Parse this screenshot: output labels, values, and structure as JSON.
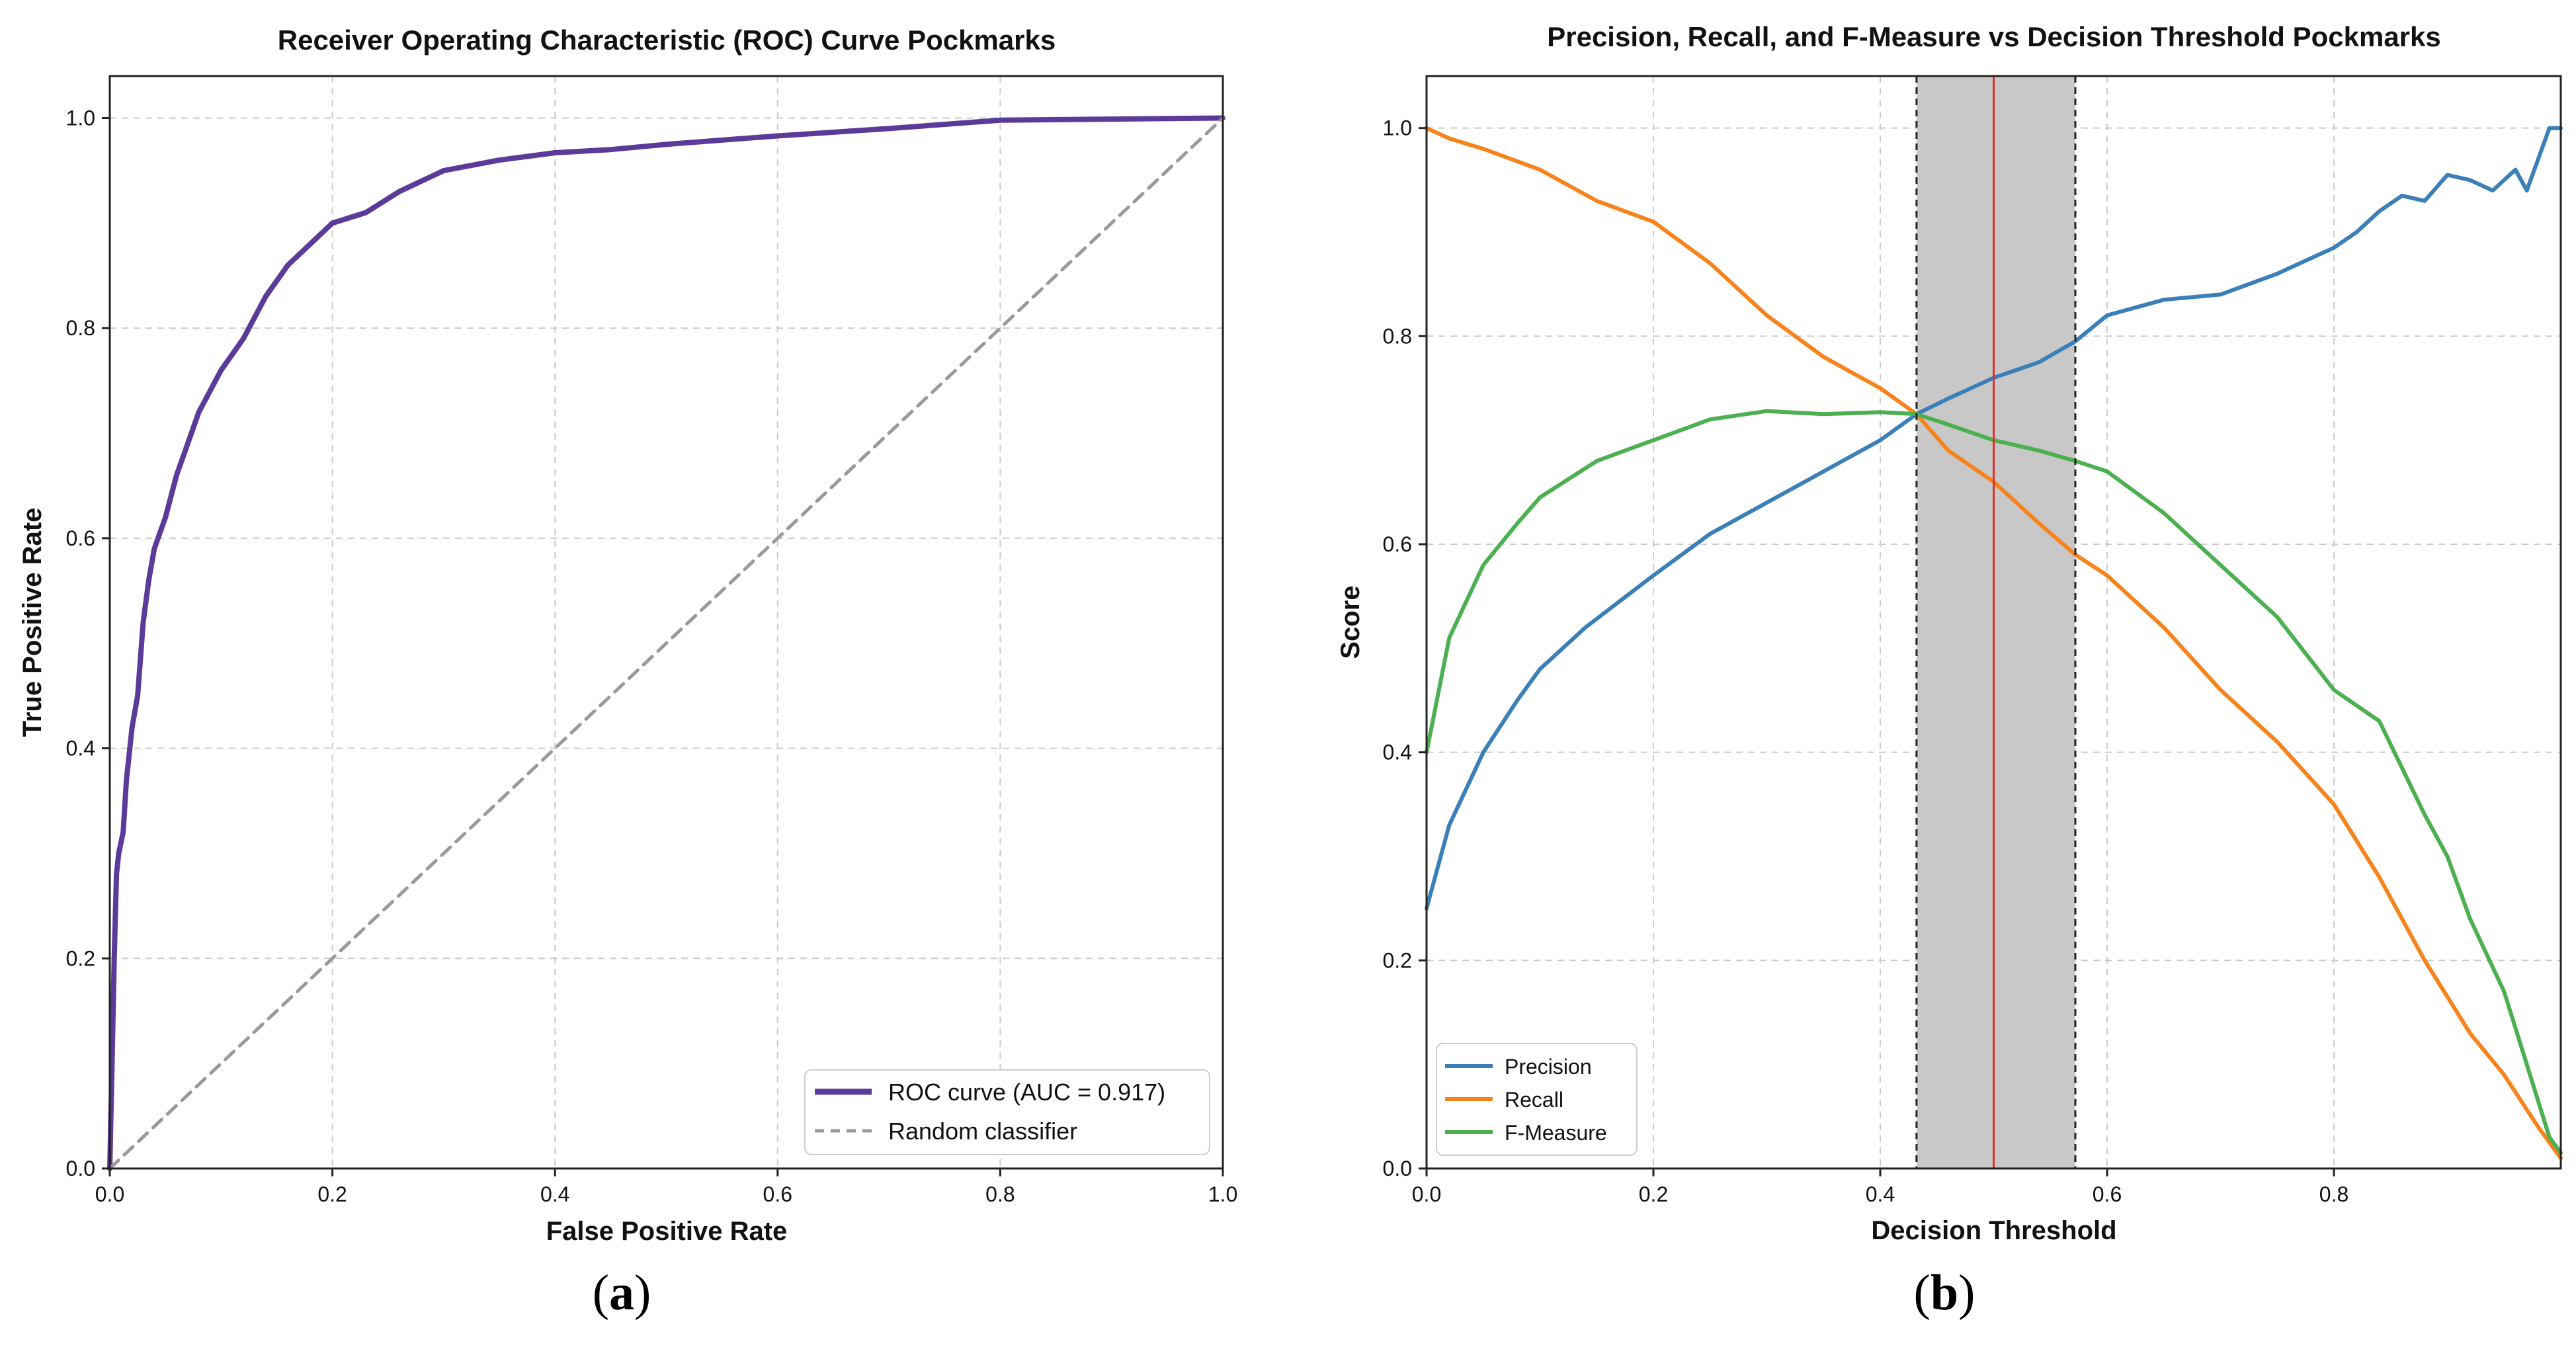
{
  "colors": {
    "roc": "#5b3a9a",
    "random": "#999999",
    "precision": "#3a7fb8",
    "recall": "#f7831c",
    "fmeasure": "#4caf50",
    "threshold_line": "#e82b2b",
    "band": "#c8c8c8"
  },
  "panel_a_caption": "(a)",
  "panel_b_caption": "(b)",
  "panel_a_caption_letter": "a",
  "panel_b_caption_letter": "b",
  "chart_data": [
    {
      "type": "line",
      "title": "Receiver Operating Characteristic (ROC) Curve Pockmarks",
      "xlabel": "False Positive Rate",
      "ylabel": "True Positive Rate",
      "xlim": [
        0,
        1
      ],
      "ylim": [
        0,
        1.04
      ],
      "xticks": [
        0.0,
        0.2,
        0.4,
        0.6,
        0.8,
        1.0
      ],
      "yticks": [
        0.0,
        0.2,
        0.4,
        0.6,
        0.8,
        1.0
      ],
      "xtick_labels": [
        "0.0",
        "0.2",
        "0.4",
        "0.6",
        "0.8",
        "1.0"
      ],
      "ytick_labels": [
        "0.0",
        "0.2",
        "0.4",
        "0.6",
        "0.8",
        "1.0"
      ],
      "grid": true,
      "legend_position": "bottom-right",
      "series": [
        {
          "name": "ROC curve (AUC = 0.917)",
          "style": "solid",
          "x": [
            0,
            0.002,
            0.004,
            0.006,
            0.008,
            0.012,
            0.015,
            0.02,
            0.025,
            0.03,
            0.035,
            0.04,
            0.05,
            0.06,
            0.07,
            0.08,
            0.09,
            0.1,
            0.12,
            0.14,
            0.16,
            0.18,
            0.2,
            0.23,
            0.26,
            0.3,
            0.35,
            0.4,
            0.45,
            0.5,
            0.6,
            0.7,
            0.8,
            0.9,
            1.0
          ],
          "y": [
            0,
            0.1,
            0.2,
            0.28,
            0.3,
            0.32,
            0.37,
            0.42,
            0.45,
            0.52,
            0.56,
            0.59,
            0.62,
            0.66,
            0.69,
            0.72,
            0.74,
            0.76,
            0.79,
            0.83,
            0.86,
            0.88,
            0.9,
            0.91,
            0.93,
            0.95,
            0.96,
            0.967,
            0.97,
            0.975,
            0.983,
            0.99,
            0.998,
            0.999,
            1.0
          ]
        },
        {
          "name": "Random classifier",
          "style": "dashed",
          "x": [
            0,
            1
          ],
          "y": [
            0,
            1
          ]
        }
      ]
    },
    {
      "type": "line",
      "title": "Precision, Recall, and F-Measure vs Decision Threshold Pockmarks",
      "xlabel": "Decision Threshold",
      "ylabel": "Score",
      "xlim": [
        0,
        1
      ],
      "ylim": [
        0,
        1.05
      ],
      "xticks": [
        0.0,
        0.2,
        0.4,
        0.6,
        0.8
      ],
      "yticks": [
        0.0,
        0.2,
        0.4,
        0.6,
        0.8,
        1.0
      ],
      "xtick_labels": [
        "0.0",
        "0.2",
        "0.4",
        "0.6",
        "0.8"
      ],
      "ytick_labels": [
        "0.0",
        "0.2",
        "0.4",
        "0.6",
        "0.8",
        "1.0"
      ],
      "grid": true,
      "legend_position": "bottom-left",
      "threshold": 0.5,
      "band": [
        0.432,
        0.572
      ],
      "series": [
        {
          "name": "Precision",
          "x": [
            0,
            0.02,
            0.05,
            0.08,
            0.1,
            0.14,
            0.2,
            0.25,
            0.3,
            0.35,
            0.4,
            0.432,
            0.46,
            0.5,
            0.54,
            0.572,
            0.6,
            0.65,
            0.7,
            0.75,
            0.78,
            0.8,
            0.82,
            0.84,
            0.86,
            0.88,
            0.9,
            0.92,
            0.94,
            0.96,
            0.97,
            0.98,
            0.99,
            1.0
          ],
          "y": [
            0.25,
            0.33,
            0.4,
            0.45,
            0.48,
            0.52,
            0.57,
            0.61,
            0.64,
            0.67,
            0.7,
            0.725,
            0.74,
            0.76,
            0.775,
            0.795,
            0.82,
            0.835,
            0.84,
            0.86,
            0.875,
            0.885,
            0.9,
            0.92,
            0.935,
            0.93,
            0.955,
            0.95,
            0.94,
            0.96,
            0.94,
            0.97,
            1.0,
            1.0
          ]
        },
        {
          "name": "Recall",
          "x": [
            0,
            0.02,
            0.05,
            0.1,
            0.15,
            0.2,
            0.25,
            0.3,
            0.35,
            0.4,
            0.432,
            0.46,
            0.5,
            0.54,
            0.572,
            0.6,
            0.65,
            0.7,
            0.75,
            0.8,
            0.84,
            0.88,
            0.92,
            0.95,
            0.98,
            1.0
          ],
          "y": [
            1.0,
            0.99,
            0.98,
            0.96,
            0.93,
            0.91,
            0.87,
            0.82,
            0.78,
            0.75,
            0.725,
            0.69,
            0.66,
            0.62,
            0.59,
            0.57,
            0.52,
            0.46,
            0.41,
            0.35,
            0.28,
            0.2,
            0.13,
            0.09,
            0.04,
            0.01
          ]
        },
        {
          "name": "F-Measure",
          "x": [
            0,
            0.02,
            0.05,
            0.08,
            0.1,
            0.15,
            0.2,
            0.25,
            0.3,
            0.35,
            0.4,
            0.432,
            0.46,
            0.5,
            0.54,
            0.572,
            0.6,
            0.65,
            0.7,
            0.75,
            0.8,
            0.84,
            0.88,
            0.9,
            0.92,
            0.95,
            0.97,
            0.99,
            1.0
          ],
          "y": [
            0.4,
            0.51,
            0.58,
            0.62,
            0.645,
            0.68,
            0.7,
            0.72,
            0.728,
            0.725,
            0.727,
            0.725,
            0.715,
            0.7,
            0.69,
            0.68,
            0.67,
            0.63,
            0.58,
            0.53,
            0.46,
            0.43,
            0.34,
            0.3,
            0.24,
            0.17,
            0.1,
            0.03,
            0.015
          ]
        }
      ]
    }
  ]
}
